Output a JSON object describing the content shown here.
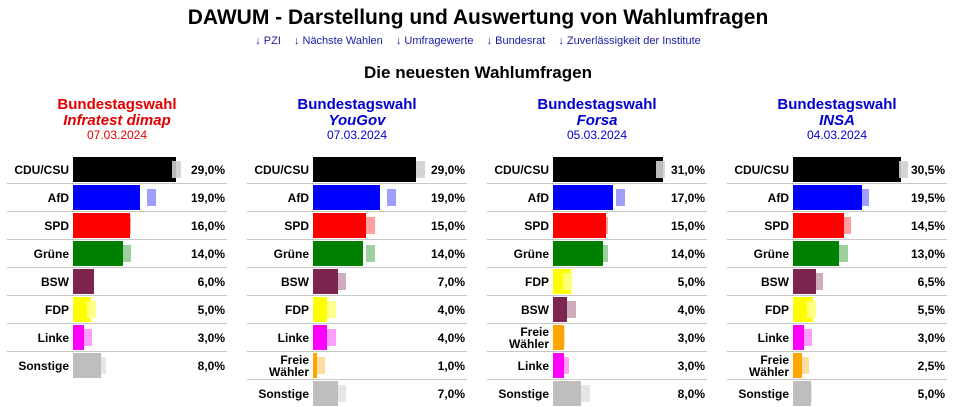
{
  "page": {
    "title": "DAWUM - Darstellung und Auswertung von Wahlumfragen",
    "nav": [
      "↓ PZI",
      "↓ Nächste Wahlen",
      "↓ Umfragewerte",
      "↓ Bundesrat",
      "↓ Zuverlässigkeit der Institute"
    ],
    "section_heading": "Die neuesten Wahlumfragen"
  },
  "colors": {
    "CDU/CSU": "#000000",
    "AfD": "#0000ff",
    "SPD": "#ff0000",
    "Grüne": "#008000",
    "BSW": "#7d254f",
    "FDP": "#ffff00",
    "Linke": "#ff00ff",
    "Freie Wähler": "#ffa500",
    "Sonstige": "#bebebe",
    "red_title": "#e00000",
    "blue_title": "#0000cc"
  },
  "chart_data": [
    {
      "type": "bar",
      "election": "Bundestagswahl",
      "institute": "Infratest dimap",
      "date": "07.03.2024",
      "title_color": "#e00000",
      "categories": [
        "CDU/CSU",
        "AfD",
        "SPD",
        "Grüne",
        "BSW",
        "FDP",
        "Linke",
        "Sonstige"
      ],
      "values": [
        29.0,
        19.0,
        16.0,
        14.0,
        6.0,
        5.0,
        3.0,
        8.0
      ],
      "labels": [
        "29,0%",
        "19,0%",
        "16,0%",
        "14,0%",
        "6,0%",
        "5,0%",
        "3,0%",
        "8,0%"
      ],
      "previous_values": [
        29,
        22,
        15,
        15,
        4,
        5,
        4,
        8
      ]
    },
    {
      "type": "bar",
      "election": "Bundestagswahl",
      "institute": "YouGov",
      "date": "07.03.2024",
      "title_color": "#0000cc",
      "categories": [
        "CDU/CSU",
        "AfD",
        "SPD",
        "Grüne",
        "BSW",
        "FDP",
        "Linke",
        "Freie Wähler",
        "Sonstige"
      ],
      "values": [
        29.0,
        19.0,
        15.0,
        14.0,
        7.0,
        4.0,
        4.0,
        1.0,
        7.0
      ],
      "labels": [
        "29,0%",
        "19,0%",
        "15,0%",
        "14,0%",
        "7,0%",
        "4,0%",
        "4,0%",
        "1,0%",
        "7,0%"
      ],
      "previous_values": [
        30,
        22,
        16,
        16,
        8,
        5,
        5,
        2,
        8
      ]
    },
    {
      "type": "bar",
      "election": "Bundestagswahl",
      "institute": "Forsa",
      "date": "05.03.2024",
      "title_color": "#0000cc",
      "categories": [
        "CDU/CSU",
        "AfD",
        "SPD",
        "Grüne",
        "FDP",
        "BSW",
        "Freie Wähler",
        "Linke",
        "Sonstige"
      ],
      "values": [
        31.0,
        17.0,
        15.0,
        14.0,
        5.0,
        4.0,
        3.0,
        3.0,
        8.0
      ],
      "labels": [
        "31,0%",
        "17,0%",
        "15,0%",
        "14,0%",
        "5,0%",
        "4,0%",
        "3,0%",
        "3,0%",
        "8,0%"
      ],
      "previous_values": [
        30,
        19,
        14,
        14,
        4,
        5,
        2,
        3,
        9
      ]
    },
    {
      "type": "bar",
      "election": "Bundestagswahl",
      "institute": "INSA",
      "date": "04.03.2024",
      "title_color": "#0000cc",
      "categories": [
        "CDU/CSU",
        "AfD",
        "SPD",
        "Grüne",
        "BSW",
        "FDP",
        "Linke",
        "Freie Wähler",
        "Sonstige"
      ],
      "values": [
        30.5,
        19.5,
        14.5,
        13.0,
        6.5,
        5.5,
        3.0,
        2.5,
        5.0
      ],
      "labels": [
        "30,5%",
        "19,5%",
        "14,5%",
        "13,0%",
        "6,5%",
        "5,5%",
        "3,0%",
        "2,5%",
        "5,0%"
      ],
      "previous_values": [
        31,
        20,
        15,
        14,
        7,
        5,
        4,
        3,
        4
      ]
    }
  ]
}
